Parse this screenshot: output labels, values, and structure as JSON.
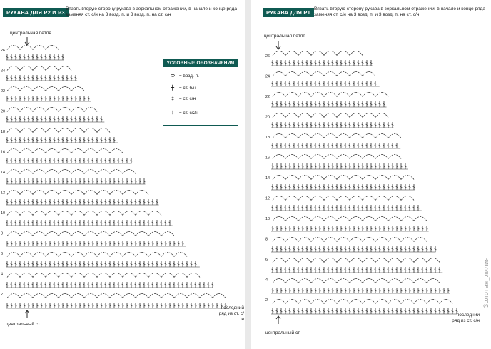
{
  "left": {
    "title": "РУКАВА ДЛЯ Р2 И Р3",
    "note": "Вязать вторую сторону рукава в зеркальном отражении, в начале и конце ряда заменяя ст. с/н на 3 возд. п. и 3 возд. п. на ст. с/н",
    "center_loop_label": "центральная петля",
    "center_stitch_label": "центральный ст.",
    "last_row_label": "последний ряд из ст. с/н",
    "row_numbers": [
      "26",
      "24",
      "22",
      "20",
      "18",
      "16",
      "14",
      "12",
      "10",
      "8",
      "6",
      "4",
      "2"
    ]
  },
  "right": {
    "title": "РУКАВА ДЛЯ Р1",
    "note": "Вязать вторую сторону рукава в зеркальном отражении, в начале и конце ряда заменяя ст. с/н на 3 возд. п. и 3 возд. п. на ст. с/н",
    "center_loop_label": "центральная петля",
    "center_stitch_label": "центральный ст.",
    "last_row_label": "последний ряд из ст. с/н",
    "row_numbers": [
      "26",
      "24",
      "22",
      "20",
      "18",
      "16",
      "14",
      "12",
      "10",
      "8",
      "6",
      "4",
      "2"
    ]
  },
  "legend": {
    "title": "УСЛОВНЫЕ ОБОЗНАЧЕНИЯ",
    "items": [
      {
        "symbol": "⬭",
        "text": "= возд. п."
      },
      {
        "symbol": "╋",
        "text": "= ст. б/н"
      },
      {
        "symbol": "‡",
        "text": "= ст. с/н"
      },
      {
        "symbol": "⸸",
        "text": "= ст. с/2н"
      }
    ]
  },
  "watermark": "Золотая_лилия"
}
